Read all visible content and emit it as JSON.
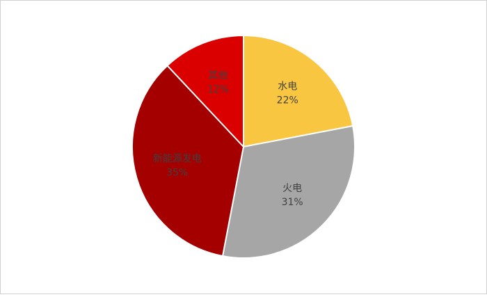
{
  "chart_data": {
    "type": "pie",
    "categories": [
      "水电",
      "火电",
      "新能源发电",
      "其他"
    ],
    "values": [
      22,
      31,
      35,
      12
    ],
    "value_labels": [
      "22%",
      "31%",
      "35%",
      "12%"
    ],
    "colors": [
      "#f9c642",
      "#a6a6a6",
      "#a50000",
      "#da0000"
    ]
  }
}
